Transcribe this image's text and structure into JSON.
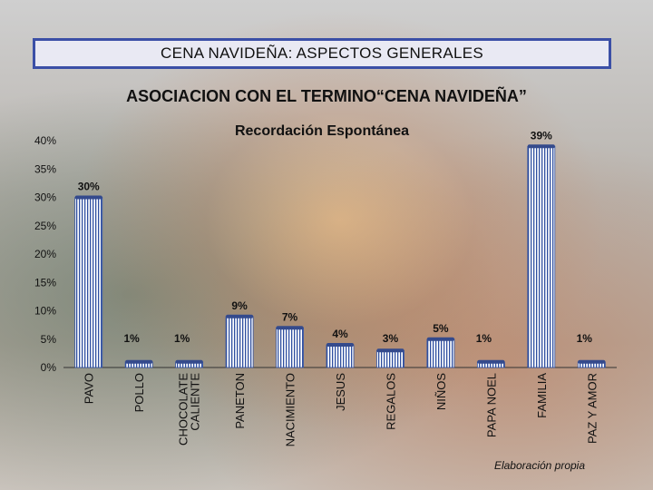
{
  "header": {
    "title": "CENA NAVIDEÑA: ASPECTOS GENERALES"
  },
  "subtitle": "ASOCIACION CON EL TERMINO“CENA  NAVIDEÑA”",
  "credit": "Elaboración propia",
  "colors": {
    "bar_fill": "#ffffff",
    "bar_stripe": "#2f4fa0",
    "bar_top": "#344a8c",
    "header_border": "#3b4fa6"
  },
  "chart_data": {
    "type": "bar",
    "title": "Recordación Espontánea",
    "categories": [
      "PAVO",
      "POLLO",
      "CHOCOLATE CALIENTE",
      "PANETON",
      "NACIMIENTO",
      "JESUS",
      "REGALOS",
      "NIÑOS",
      "PAPA NOEL",
      "FAMILIA",
      "PAZ Y AMOR"
    ],
    "values": [
      30,
      1,
      1,
      9,
      7,
      4,
      3,
      5,
      1,
      39,
      1
    ],
    "data_labels": [
      "30%",
      "1%",
      "1%",
      "9%",
      "7%",
      "4%",
      "3%",
      "5%",
      "1%",
      "39%",
      "1%"
    ],
    "ylim": [
      0,
      40
    ],
    "yticks": [
      "0%",
      "5%",
      "10%",
      "15%",
      "20%",
      "25%",
      "30%",
      "35%",
      "40%"
    ],
    "xlabel": "",
    "ylabel": "",
    "grid": false,
    "legend": "none"
  }
}
